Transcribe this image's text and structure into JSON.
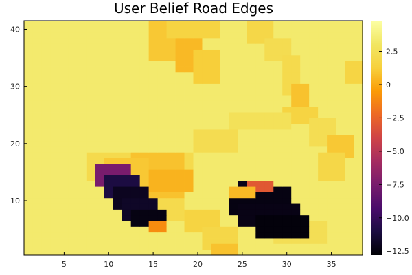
{
  "chart_data": {
    "type": "heatmap",
    "title": "User Belief Road Edges",
    "xlabel": "",
    "ylabel": "",
    "x_ticks": [
      "5",
      "10",
      "15",
      "20",
      "25",
      "30",
      "35"
    ],
    "y_ticks": [
      "10",
      "20",
      "30",
      "40"
    ],
    "colorbar_ticks": [
      "2.5",
      "0",
      "−2.5",
      "−5.0",
      "−7.5",
      "−10.0",
      "−12.5"
    ],
    "xlim": [
      0.5,
      38.5
    ],
    "ylim": [
      0.5,
      41.5
    ],
    "zlim": [
      -12.8,
      4.8
    ],
    "colormap": "inferno",
    "background_value": 3.3,
    "grid": false,
    "regions": [
      {
        "x": [
          15,
          18
        ],
        "y": [
          35,
          41
        ],
        "value": 1.0
      },
      {
        "x": [
          18,
          20
        ],
        "y": [
          33,
          39
        ],
        "value": 0.5
      },
      {
        "x": [
          20,
          22
        ],
        "y": [
          31,
          36
        ],
        "value": 1.2
      },
      {
        "x": [
          17,
          22
        ],
        "y": [
          39,
          41
        ],
        "value": 1.5
      },
      {
        "x": [
          26,
          28
        ],
        "y": [
          38,
          41
        ],
        "value": 1.8
      },
      {
        "x": [
          28,
          30
        ],
        "y": [
          35,
          38
        ],
        "value": 2.2
      },
      {
        "x": [
          30,
          31
        ],
        "y": [
          29,
          35
        ],
        "value": 2.0
      },
      {
        "x": [
          31,
          32
        ],
        "y": [
          25,
          30
        ],
        "value": 0.8
      },
      {
        "x": [
          30,
          33
        ],
        "y": [
          24,
          26
        ],
        "value": 1.5
      },
      {
        "x": [
          33,
          35
        ],
        "y": [
          20,
          24
        ],
        "value": 2.3
      },
      {
        "x": [
          35,
          37
        ],
        "y": [
          18,
          21
        ],
        "value": 1.0
      },
      {
        "x": [
          34,
          36
        ],
        "y": [
          14,
          18
        ],
        "value": 1.8
      },
      {
        "x": [
          37,
          38
        ],
        "y": [
          31,
          34
        ],
        "value": 1.6
      },
      {
        "x": [
          24,
          30
        ],
        "y": [
          23,
          25
        ],
        "value": 2.6
      },
      {
        "x": [
          20,
          24
        ],
        "y": [
          19,
          22
        ],
        "value": 2.2
      },
      {
        "x": [
          8,
          19
        ],
        "y": [
          14,
          18
        ],
        "value": 2.0
      },
      {
        "x": [
          13,
          18
        ],
        "y": [
          10,
          18
        ],
        "value": 0.8
      },
      {
        "x": [
          15,
          19
        ],
        "y": [
          12,
          15
        ],
        "value": 0.3
      },
      {
        "x": [
          10,
          14
        ],
        "y": [
          12,
          17
        ],
        "value": 1.0
      },
      {
        "x": [
          16,
          18
        ],
        "y": [
          7,
          10
        ],
        "value": 2.0
      },
      {
        "x": [
          19,
          22
        ],
        "y": [
          5,
          8
        ],
        "value": 1.5
      },
      {
        "x": [
          21,
          24
        ],
        "y": [
          2,
          5
        ],
        "value": 1.8
      },
      {
        "x": [
          22,
          24
        ],
        "y": [
          1,
          2
        ],
        "value": 0.8
      },
      {
        "x": [
          29,
          34
        ],
        "y": [
          3,
          6
        ],
        "value": 2.4
      },
      {
        "x": [
          9,
          12
        ],
        "y": [
          13,
          16
        ],
        "value": -7.5
      },
      {
        "x": [
          10,
          13
        ],
        "y": [
          11,
          14
        ],
        "value": -11.0
      },
      {
        "x": [
          11,
          14
        ],
        "y": [
          9,
          12
        ],
        "value": -12.0
      },
      {
        "x": [
          12,
          15
        ],
        "y": [
          7,
          10
        ],
        "value": -11.8
      },
      {
        "x": [
          13,
          16
        ],
        "y": [
          6,
          8
        ],
        "value": -12.4
      },
      {
        "x": [
          15,
          16
        ],
        "y": [
          5,
          6
        ],
        "value": -1.0
      },
      {
        "x": [
          25,
          28
        ],
        "y": [
          9,
          13
        ],
        "value": -12.2
      },
      {
        "x": [
          24,
          30
        ],
        "y": [
          8,
          12
        ],
        "value": -12.4
      },
      {
        "x": [
          25,
          31
        ],
        "y": [
          6,
          9
        ],
        "value": -12.3
      },
      {
        "x": [
          27,
          32
        ],
        "y": [
          4,
          7
        ],
        "value": -12.6
      },
      {
        "x": [
          26,
          28
        ],
        "y": [
          12,
          13
        ],
        "value": -3.0
      },
      {
        "x": [
          24,
          26
        ],
        "y": [
          11,
          12
        ],
        "value": 0.5
      }
    ]
  }
}
